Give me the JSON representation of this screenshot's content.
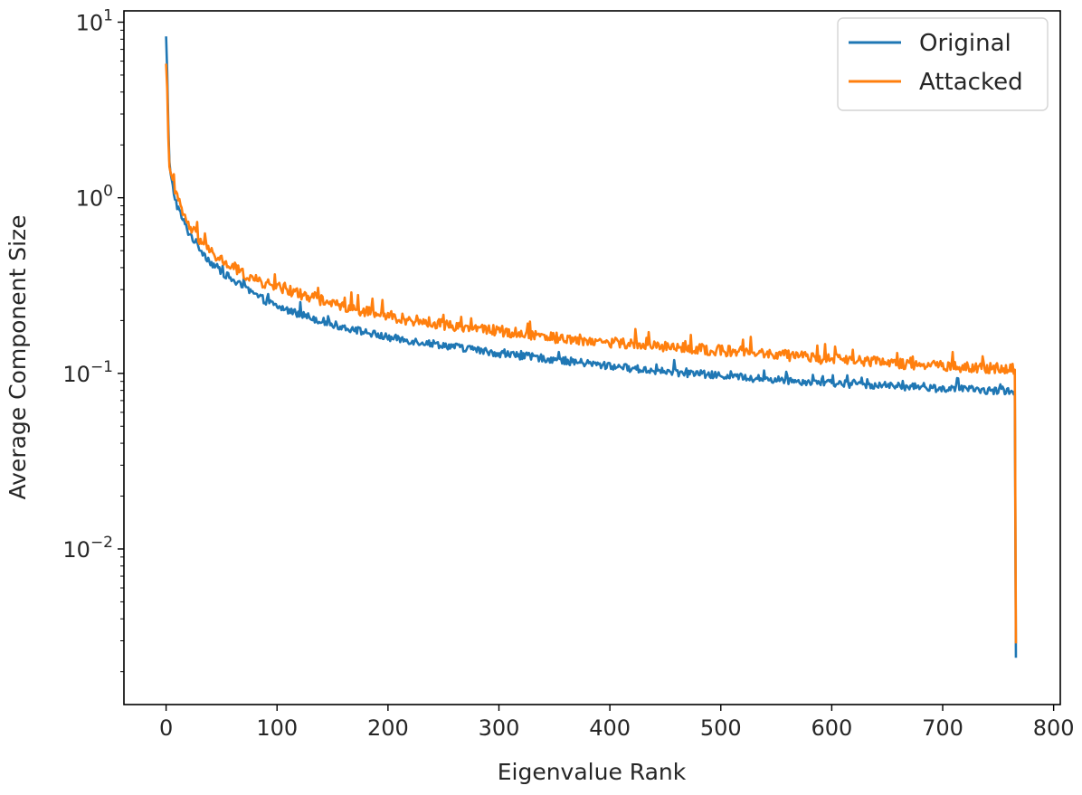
{
  "chart_data": {
    "type": "line",
    "title": "",
    "xlabel": "Eigenvalue Rank",
    "ylabel": "Average Component Size",
    "xlim": [
      -38,
      806
    ],
    "ylim": [
      0.0013,
      11.6
    ],
    "yscale": "log",
    "x_ticks": [
      0,
      100,
      200,
      300,
      400,
      500,
      600,
      700,
      800
    ],
    "y_ticks": [
      {
        "value": 10,
        "base": "10",
        "exp": "1"
      },
      {
        "value": 1,
        "base": "10",
        "exp": "0"
      },
      {
        "value": 0.1,
        "base": "10",
        "exp": "−1"
      },
      {
        "value": 0.01,
        "base": "10",
        "exp": "−2"
      }
    ],
    "grid": false,
    "legend_position": "top-right",
    "series": [
      {
        "name": "Original",
        "color": "#1f77b4",
        "points": [
          [
            0,
            8.3
          ],
          [
            1,
            5.2
          ],
          [
            2,
            2.6
          ],
          [
            3,
            1.6
          ],
          [
            4,
            1.35
          ],
          [
            6,
            1.15
          ],
          [
            8,
            1.0
          ],
          [
            10,
            0.9
          ],
          [
            15,
            0.75
          ],
          [
            20,
            0.64
          ],
          [
            30,
            0.52
          ],
          [
            40,
            0.43
          ],
          [
            50,
            0.38
          ],
          [
            60,
            0.34
          ],
          [
            80,
            0.28
          ],
          [
            100,
            0.24
          ],
          [
            150,
            0.19
          ],
          [
            200,
            0.16
          ],
          [
            250,
            0.145
          ],
          [
            300,
            0.13
          ],
          [
            350,
            0.12
          ],
          [
            400,
            0.11
          ],
          [
            450,
            0.102
          ],
          [
            500,
            0.097
          ],
          [
            550,
            0.092
          ],
          [
            600,
            0.088
          ],
          [
            650,
            0.085
          ],
          [
            700,
            0.082
          ],
          [
            760,
            0.079
          ],
          [
            765,
            0.08
          ],
          [
            766,
            0.0024
          ]
        ]
      },
      {
        "name": "Attacked",
        "color": "#ff7f0e",
        "points": [
          [
            0,
            5.8
          ],
          [
            1,
            4.2
          ],
          [
            2,
            2.2
          ],
          [
            3,
            1.5
          ],
          [
            4,
            1.3
          ],
          [
            6,
            1.2
          ],
          [
            8,
            1.1
          ],
          [
            10,
            1.0
          ],
          [
            15,
            0.82
          ],
          [
            20,
            0.7
          ],
          [
            30,
            0.58
          ],
          [
            40,
            0.49
          ],
          [
            50,
            0.44
          ],
          [
            60,
            0.4
          ],
          [
            80,
            0.34
          ],
          [
            100,
            0.31
          ],
          [
            150,
            0.25
          ],
          [
            200,
            0.21
          ],
          [
            250,
            0.19
          ],
          [
            300,
            0.175
          ],
          [
            350,
            0.16
          ],
          [
            400,
            0.15
          ],
          [
            450,
            0.142
          ],
          [
            500,
            0.135
          ],
          [
            550,
            0.128
          ],
          [
            600,
            0.12
          ],
          [
            650,
            0.115
          ],
          [
            700,
            0.11
          ],
          [
            760,
            0.106
          ],
          [
            765,
            0.106
          ],
          [
            766,
            0.0029
          ]
        ]
      }
    ]
  }
}
